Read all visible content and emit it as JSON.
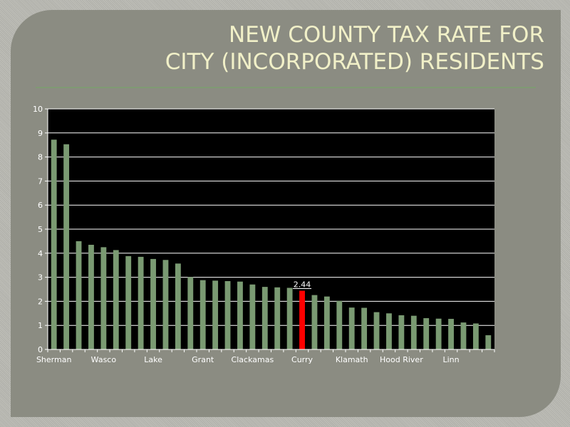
{
  "slide": {
    "title_line1": "NEW COUNTY TAX RATE FOR",
    "title_line2": "CITY (INCORPORATED) RESIDENTS"
  },
  "colors": {
    "bar": "#7a9a72",
    "highlight": "#ff0000",
    "plot_background": "#000000",
    "gridline": "#ffffff",
    "title": "#f1f0c8"
  },
  "chart_data": {
    "type": "bar",
    "title": "",
    "xlabel": "",
    "ylabel": "",
    "ylim": [
      0,
      10
    ],
    "yticks": [
      0,
      1,
      2,
      3,
      4,
      5,
      6,
      7,
      8,
      9,
      10
    ],
    "grid": true,
    "legend": "none",
    "highlight_index": 20,
    "categories": [
      "Sherman",
      "",
      "",
      "",
      "Wasco",
      "",
      "",
      "",
      "Lake",
      "",
      "",
      "",
      "Grant",
      "",
      "",
      "",
      "Clackamas",
      "",
      "",
      "",
      "Curry",
      "",
      "",
      "",
      "Klamath",
      "",
      "",
      "",
      "Hood River",
      "",
      "",
      "",
      "Linn",
      "",
      "",
      ""
    ],
    "values": [
      8.72,
      8.53,
      4.5,
      4.35,
      4.25,
      4.13,
      3.88,
      3.85,
      3.76,
      3.72,
      3.57,
      3.01,
      2.88,
      2.86,
      2.84,
      2.82,
      2.7,
      2.6,
      2.58,
      2.56,
      2.44,
      2.26,
      2.2,
      2.02,
      1.74,
      1.73,
      1.55,
      1.5,
      1.42,
      1.4,
      1.3,
      1.28,
      1.27,
      1.12,
      1.08,
      0.59
    ],
    "data_labels": [
      {
        "index": 20,
        "text": "2.44"
      }
    ]
  }
}
